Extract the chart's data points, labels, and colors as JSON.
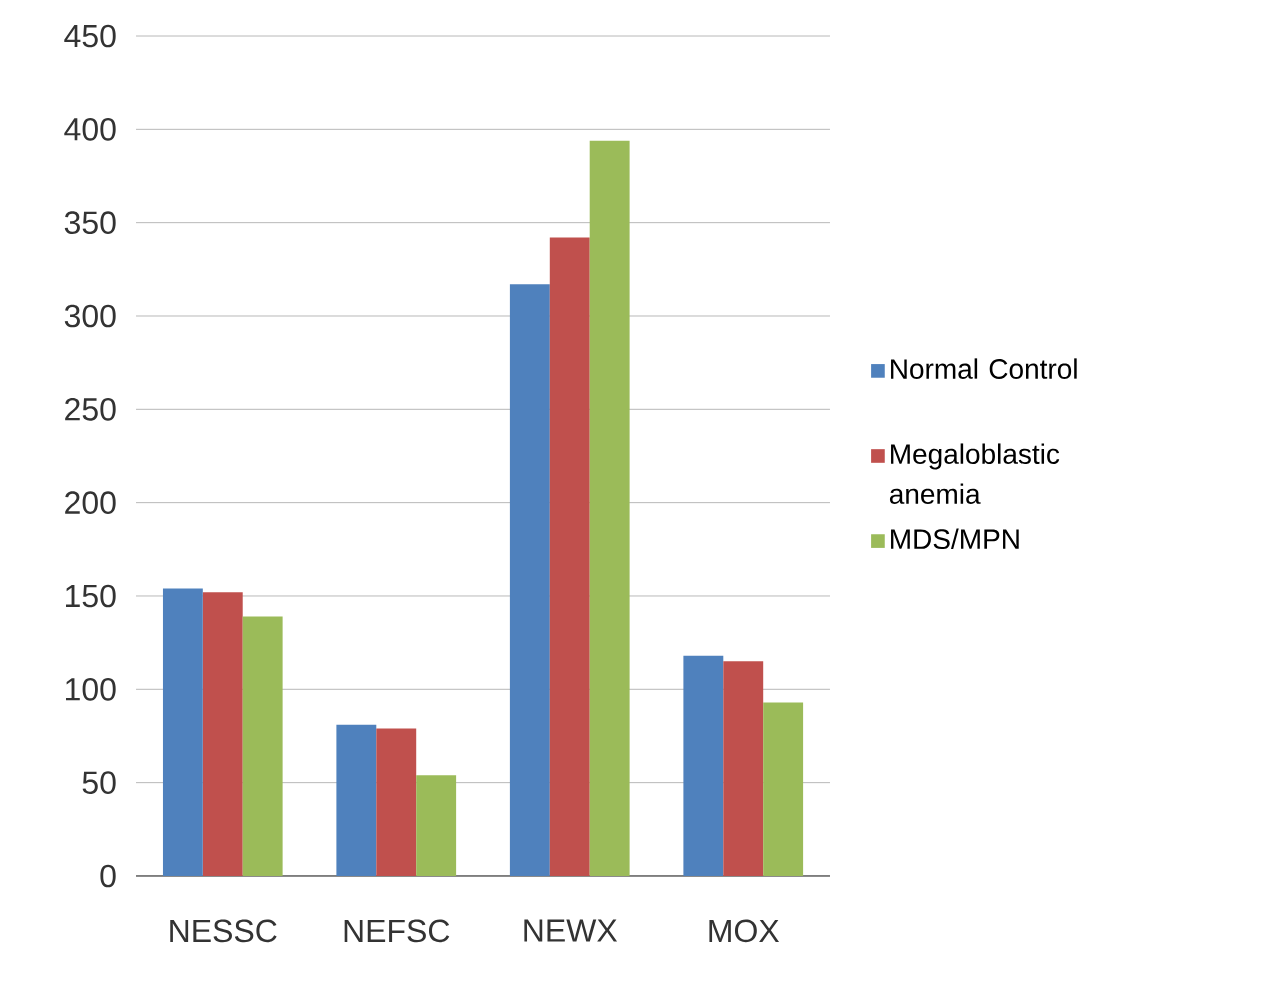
{
  "chart_data": {
    "type": "bar",
    "categories": [
      "NESSC",
      "NEFSC",
      "NEWX",
      "MOX"
    ],
    "series": [
      {
        "name": "Normal Control",
        "color": "#4f81bd",
        "values": [
          154,
          81,
          317,
          118
        ]
      },
      {
        "name": "Megaloblastic anemia",
        "color": "#c0504d",
        "values": [
          152,
          79,
          342,
          115
        ]
      },
      {
        "name": "MDS/MPN",
        "color": "#9bbb59",
        "values": [
          139,
          54,
          394,
          93
        ]
      }
    ],
    "ylim": [
      0,
      450
    ],
    "yticks": [
      0,
      50,
      100,
      150,
      200,
      250,
      300,
      350,
      400,
      450
    ],
    "grid": "y",
    "legend": "right"
  }
}
